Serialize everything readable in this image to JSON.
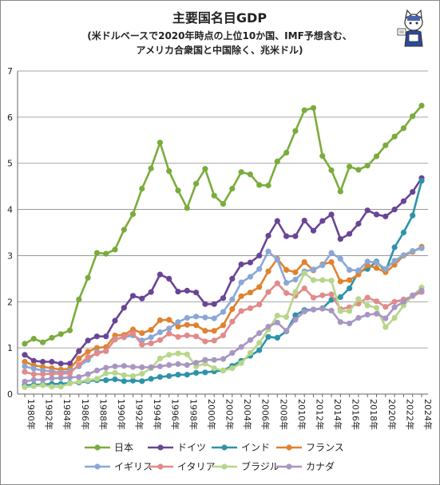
{
  "chart_data": {
    "type": "line",
    "title": "主要国名目GDP",
    "subtitle_lines": [
      "(米ドルベースで2020年時点の上位10か国、IMF予想含む、",
      "アメリカ合衆国と中国除く、兆米ドル)"
    ],
    "x": [
      1980,
      1981,
      1982,
      1983,
      1984,
      1985,
      1986,
      1987,
      1988,
      1989,
      1990,
      1991,
      1992,
      1993,
      1994,
      1995,
      1996,
      1997,
      1998,
      1999,
      2000,
      2001,
      2002,
      2003,
      2004,
      2005,
      2006,
      2007,
      2008,
      2009,
      2010,
      2011,
      2012,
      2013,
      2014,
      2015,
      2016,
      2017,
      2018,
      2019,
      2020,
      2021,
      2022,
      2023,
      2024
    ],
    "x_tick_labels": [
      "1980年",
      "1982年",
      "1984年",
      "1986年",
      "1988年",
      "1990年",
      "1992年",
      "1994年",
      "1996年",
      "1998年",
      "2000年",
      "2002年",
      "2004年",
      "2006年",
      "2008年",
      "2010年",
      "2012年",
      "2014年",
      "2016年",
      "2018年",
      "2020年",
      "2022年",
      "2024年"
    ],
    "y_ticks": [
      0,
      1,
      2,
      3,
      4,
      5,
      6,
      7
    ],
    "ylim": [
      0,
      7
    ],
    "xlabel": "",
    "ylabel": "",
    "grid": "horizontal",
    "legend_position": "bottom",
    "series": [
      {
        "name": "日本",
        "color": "#7aac3c",
        "values": [
          1.09,
          1.2,
          1.12,
          1.22,
          1.3,
          1.38,
          2.05,
          2.52,
          3.06,
          3.04,
          3.13,
          3.56,
          3.9,
          4.45,
          4.89,
          5.45,
          4.83,
          4.41,
          4.03,
          4.56,
          4.88,
          4.3,
          4.12,
          4.45,
          4.81,
          4.76,
          4.53,
          4.52,
          5.04,
          5.23,
          5.7,
          6.15,
          6.2,
          5.16,
          4.85,
          4.39,
          4.93,
          4.86,
          4.95,
          5.15,
          5.39,
          5.58,
          5.76,
          6.02,
          6.25
        ]
      },
      {
        "name": "ドイツ",
        "color": "#6a4596",
        "values": [
          0.85,
          0.72,
          0.7,
          0.7,
          0.66,
          0.66,
          0.93,
          1.16,
          1.25,
          1.25,
          1.59,
          1.87,
          2.13,
          2.07,
          2.21,
          2.59,
          2.5,
          2.22,
          2.24,
          2.2,
          1.95,
          1.95,
          2.08,
          2.5,
          2.81,
          2.85,
          3.0,
          3.43,
          3.75,
          3.42,
          3.42,
          3.76,
          3.54,
          3.75,
          3.89,
          3.36,
          3.47,
          3.69,
          3.98,
          3.89,
          3.85,
          4.0,
          4.18,
          4.38,
          4.68
        ]
      },
      {
        "name": "インド",
        "color": "#2e93a8",
        "values": [
          0.19,
          0.2,
          0.21,
          0.22,
          0.22,
          0.24,
          0.25,
          0.28,
          0.3,
          0.3,
          0.32,
          0.28,
          0.29,
          0.28,
          0.33,
          0.37,
          0.39,
          0.42,
          0.42,
          0.46,
          0.47,
          0.49,
          0.51,
          0.61,
          0.72,
          0.83,
          0.95,
          1.24,
          1.22,
          1.36,
          1.71,
          1.82,
          1.83,
          1.86,
          2.04,
          2.1,
          2.29,
          2.65,
          2.71,
          2.87,
          2.66,
          3.18,
          3.5,
          3.87,
          4.62
        ]
      },
      {
        "name": "フランス",
        "color": "#e0822e",
        "values": [
          0.7,
          0.62,
          0.59,
          0.56,
          0.53,
          0.55,
          0.77,
          0.92,
          1.0,
          1.02,
          1.27,
          1.28,
          1.4,
          1.32,
          1.39,
          1.6,
          1.61,
          1.46,
          1.5,
          1.49,
          1.37,
          1.37,
          1.49,
          1.84,
          2.12,
          2.2,
          2.32,
          2.66,
          2.93,
          2.69,
          2.64,
          2.86,
          2.68,
          2.81,
          2.86,
          2.44,
          2.47,
          2.59,
          2.79,
          2.73,
          2.64,
          2.8,
          3.0,
          3.08,
          3.19
        ]
      },
      {
        "name": "イギリス",
        "color": "#8aa8d6",
        "values": [
          0.6,
          0.55,
          0.51,
          0.49,
          0.47,
          0.5,
          0.6,
          0.74,
          0.91,
          0.93,
          1.19,
          1.23,
          1.27,
          1.16,
          1.23,
          1.34,
          1.42,
          1.56,
          1.65,
          1.68,
          1.66,
          1.64,
          1.78,
          2.05,
          2.42,
          2.54,
          2.71,
          3.09,
          2.91,
          2.41,
          2.48,
          2.66,
          2.7,
          2.79,
          3.06,
          2.93,
          2.69,
          2.68,
          2.87,
          2.85,
          2.71,
          2.89,
          3.01,
          3.1,
          3.16
        ]
      },
      {
        "name": "イタリア",
        "color": "#e28a8a",
        "values": [
          0.48,
          0.43,
          0.43,
          0.44,
          0.44,
          0.45,
          0.64,
          0.8,
          0.88,
          0.93,
          1.18,
          1.24,
          1.32,
          1.07,
          1.1,
          1.17,
          1.31,
          1.24,
          1.27,
          1.25,
          1.14,
          1.16,
          1.27,
          1.57,
          1.8,
          1.86,
          1.94,
          2.21,
          2.4,
          2.19,
          2.13,
          2.29,
          2.09,
          2.14,
          2.16,
          1.84,
          1.88,
          1.96,
          2.09,
          2.01,
          1.89,
          2.0,
          2.05,
          2.12,
          2.21
        ]
      },
      {
        "name": "ブラジル",
        "color": "#b8d68a",
        "values": [
          0.15,
          0.17,
          0.19,
          0.16,
          0.16,
          0.23,
          0.27,
          0.3,
          0.33,
          0.45,
          0.46,
          0.41,
          0.39,
          0.44,
          0.56,
          0.77,
          0.85,
          0.88,
          0.86,
          0.6,
          0.66,
          0.56,
          0.51,
          0.56,
          0.67,
          0.89,
          1.11,
          1.4,
          1.7,
          1.67,
          2.21,
          2.62,
          2.47,
          2.47,
          2.46,
          1.8,
          1.8,
          2.06,
          1.92,
          1.87,
          1.45,
          1.65,
          1.92,
          2.13,
          2.31
        ]
      },
      {
        "name": "カナダ",
        "color": "#a896c2",
        "values": [
          0.27,
          0.31,
          0.31,
          0.34,
          0.35,
          0.36,
          0.37,
          0.43,
          0.51,
          0.57,
          0.6,
          0.61,
          0.59,
          0.58,
          0.58,
          0.6,
          0.63,
          0.65,
          0.63,
          0.68,
          0.74,
          0.74,
          0.76,
          0.89,
          1.02,
          1.17,
          1.32,
          1.46,
          1.55,
          1.37,
          1.61,
          1.79,
          1.83,
          1.85,
          1.81,
          1.56,
          1.53,
          1.65,
          1.72,
          1.74,
          1.64,
          1.88,
          2.0,
          2.14,
          2.24
        ]
      }
    ]
  },
  "decoration": {
    "mascot": "cat-mascot-icon"
  }
}
